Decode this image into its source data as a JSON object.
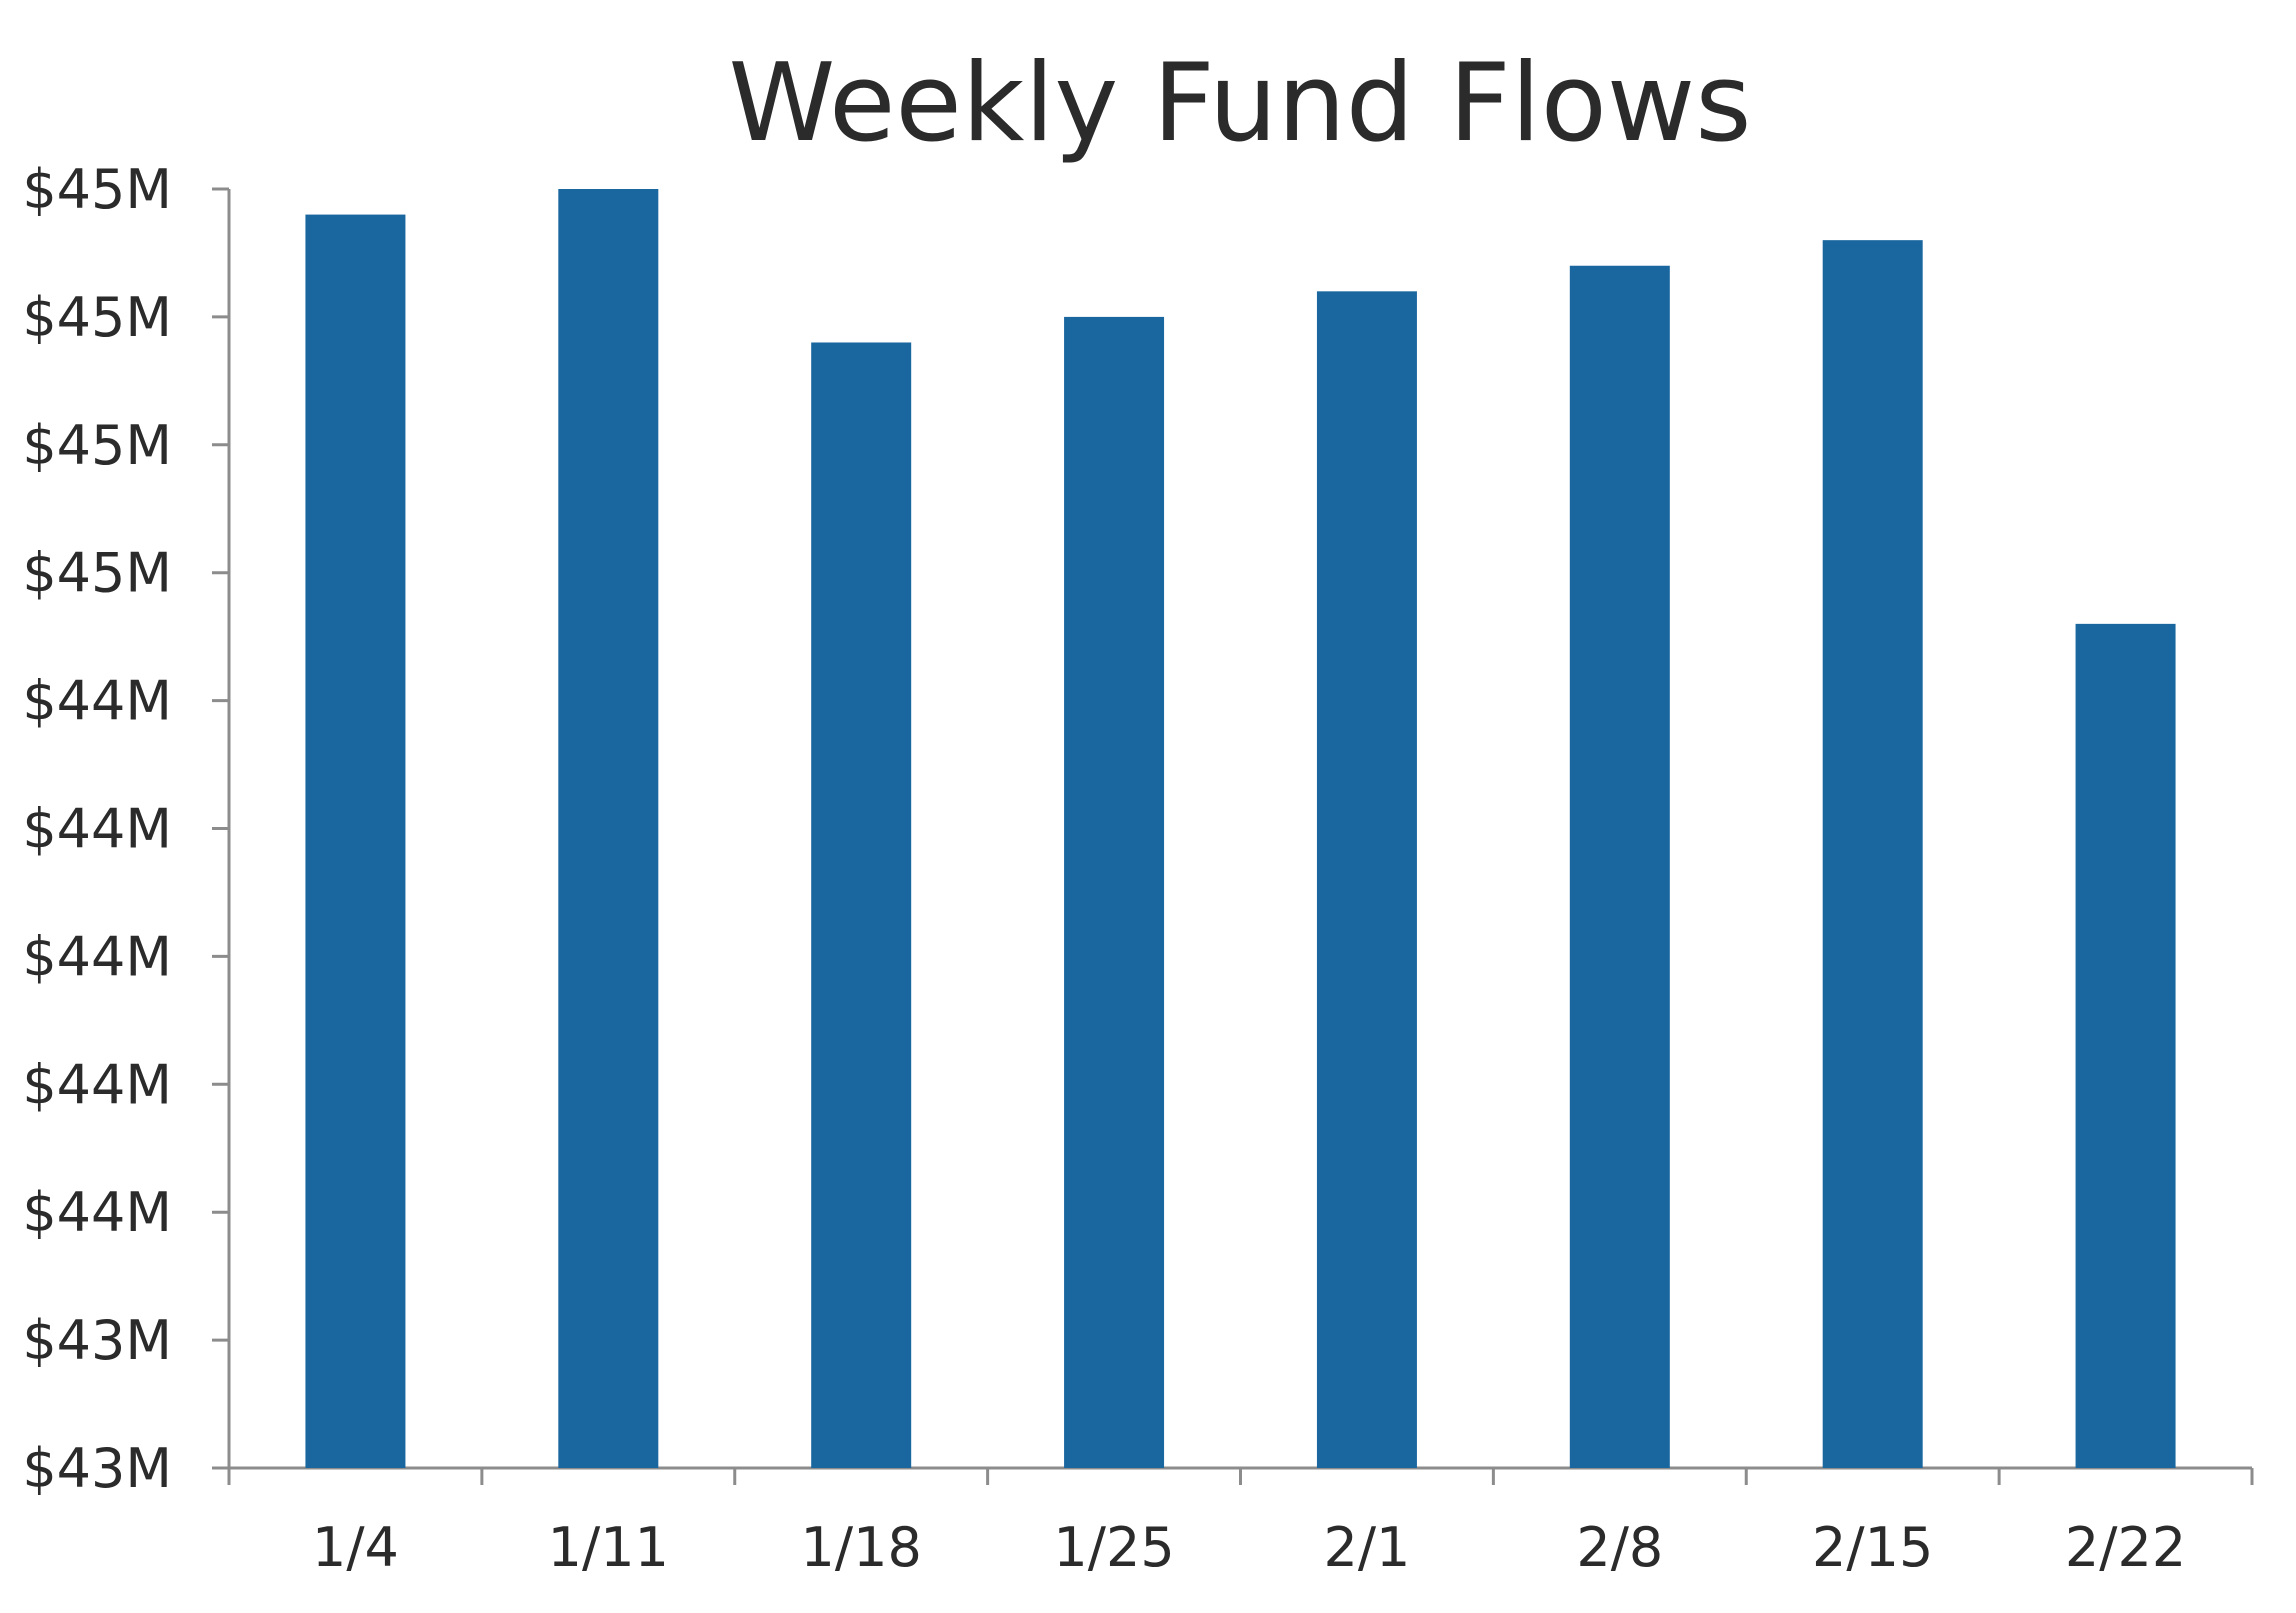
{
  "chart_data": {
    "type": "bar",
    "title": "Weekly Fund Flows",
    "xlabel": "",
    "ylabel": "",
    "categories": [
      "1/4",
      "1/11",
      "1/18",
      "1/25",
      "2/1",
      "2/8",
      "2/15",
      "2/22"
    ],
    "values": [
      44.96,
      45.0,
      44.76,
      44.8,
      44.84,
      44.88,
      44.92,
      44.32
    ],
    "ylim": [
      43.0,
      45.0
    ],
    "y_ticks": [
      {
        "value": 43.0,
        "label": "$43M"
      },
      {
        "value": 43.2,
        "label": "$43M"
      },
      {
        "value": 43.4,
        "label": "$44M"
      },
      {
        "value": 43.6,
        "label": "$44M"
      },
      {
        "value": 43.8,
        "label": "$44M"
      },
      {
        "value": 44.0,
        "label": "$44M"
      },
      {
        "value": 44.2,
        "label": "$44M"
      },
      {
        "value": 44.4,
        "label": "$45M"
      },
      {
        "value": 44.6,
        "label": "$45M"
      },
      {
        "value": 44.8,
        "label": "$45M"
      },
      {
        "value": 45.0,
        "label": "$45M"
      }
    ],
    "bar_color": "#1a67a0",
    "axis_color": "#8c8c8c",
    "text_color": "#2b2b2b",
    "grid": false,
    "legend": "none"
  }
}
